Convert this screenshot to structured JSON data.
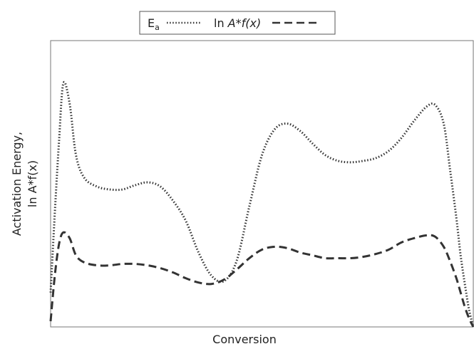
{
  "chart_data": {
    "type": "line",
    "xlabel": "Conversion",
    "ylabel_line1": "Activation Energy,",
    "ylabel_line2": "ln A*f(x)",
    "xlim": [
      0,
      1
    ],
    "ylim": [
      0,
      1
    ],
    "ticks_visible": false,
    "grid": false,
    "legend_placement": "top-center",
    "series": [
      {
        "key": "ea",
        "name_main": "E",
        "name_sub": "a",
        "style": "dotted",
        "color": "#333333",
        "x": [
          0.0,
          0.01,
          0.02,
          0.03,
          0.045,
          0.06,
          0.08,
          0.11,
          0.14,
          0.17,
          0.2,
          0.23,
          0.26,
          0.29,
          0.32,
          0.35,
          0.38,
          0.41,
          0.44,
          0.47,
          0.5,
          0.53,
          0.56,
          0.59,
          0.62,
          0.65,
          0.68,
          0.71,
          0.74,
          0.77,
          0.8,
          0.83,
          0.86,
          0.89,
          0.91,
          0.93,
          0.945,
          0.96,
          0.97,
          0.98,
          0.99,
          1.0
        ],
        "y": [
          0.12,
          0.4,
          0.65,
          0.85,
          0.78,
          0.6,
          0.52,
          0.49,
          0.48,
          0.48,
          0.495,
          0.505,
          0.49,
          0.44,
          0.37,
          0.26,
          0.18,
          0.16,
          0.23,
          0.42,
          0.6,
          0.69,
          0.71,
          0.685,
          0.64,
          0.6,
          0.58,
          0.575,
          0.58,
          0.59,
          0.615,
          0.66,
          0.72,
          0.77,
          0.775,
          0.71,
          0.55,
          0.38,
          0.25,
          0.15,
          0.06,
          0.0
        ]
      },
      {
        "key": "lna",
        "name_main": "ln ",
        "name_italic": "A*f(x)",
        "style": "dashed",
        "color": "#333333",
        "x": [
          0.0,
          0.01,
          0.02,
          0.03,
          0.045,
          0.06,
          0.08,
          0.11,
          0.14,
          0.17,
          0.2,
          0.23,
          0.26,
          0.29,
          0.32,
          0.35,
          0.38,
          0.41,
          0.44,
          0.47,
          0.5,
          0.53,
          0.56,
          0.59,
          0.62,
          0.65,
          0.68,
          0.71,
          0.74,
          0.77,
          0.8,
          0.83,
          0.86,
          0.89,
          0.91,
          0.93,
          0.945,
          0.96,
          0.97,
          0.98,
          0.99,
          1.0
        ],
        "y": [
          0.02,
          0.18,
          0.29,
          0.33,
          0.31,
          0.25,
          0.225,
          0.215,
          0.215,
          0.22,
          0.22,
          0.215,
          0.205,
          0.19,
          0.17,
          0.155,
          0.15,
          0.165,
          0.2,
          0.24,
          0.27,
          0.28,
          0.275,
          0.26,
          0.25,
          0.24,
          0.24,
          0.24,
          0.245,
          0.255,
          0.27,
          0.295,
          0.31,
          0.32,
          0.315,
          0.28,
          0.23,
          0.17,
          0.12,
          0.07,
          0.03,
          0.0
        ]
      }
    ]
  }
}
